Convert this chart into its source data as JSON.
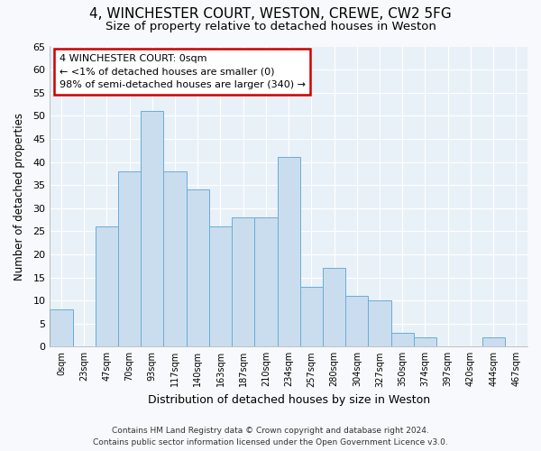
{
  "title_line1": "4, WINCHESTER COURT, WESTON, CREWE, CW2 5FG",
  "title_line2": "Size of property relative to detached houses in Weston",
  "xlabel": "Distribution of detached houses by size in Weston",
  "ylabel": "Number of detached properties",
  "categories": [
    "0sqm",
    "23sqm",
    "47sqm",
    "70sqm",
    "93sqm",
    "117sqm",
    "140sqm",
    "163sqm",
    "187sqm",
    "210sqm",
    "234sqm",
    "257sqm",
    "280sqm",
    "304sqm",
    "327sqm",
    "350sqm",
    "374sqm",
    "397sqm",
    "420sqm",
    "444sqm",
    "467sqm"
  ],
  "values": [
    8,
    0,
    26,
    38,
    51,
    38,
    34,
    26,
    28,
    28,
    41,
    13,
    17,
    11,
    10,
    3,
    2,
    0,
    0,
    2,
    0
  ],
  "bar_color": "#c9ddef",
  "bar_edge_color": "#6aadd5",
  "background_color": "#e8f0f8",
  "grid_color": "#ffffff",
  "ylim": [
    0,
    65
  ],
  "yticks": [
    0,
    5,
    10,
    15,
    20,
    25,
    30,
    35,
    40,
    45,
    50,
    55,
    60,
    65
  ],
  "annotation_title": "4 WINCHESTER COURT: 0sqm",
  "annotation_line2": "← <1% of detached houses are smaller (0)",
  "annotation_line3": "98% of semi-detached houses are larger (340) →",
  "annotation_box_color": "#ffffff",
  "annotation_border_color": "#cc0000",
  "footer_line1": "Contains HM Land Registry data © Crown copyright and database right 2024.",
  "footer_line2": "Contains public sector information licensed under the Open Government Licence v3.0.",
  "fig_background": "#f8f9fc"
}
